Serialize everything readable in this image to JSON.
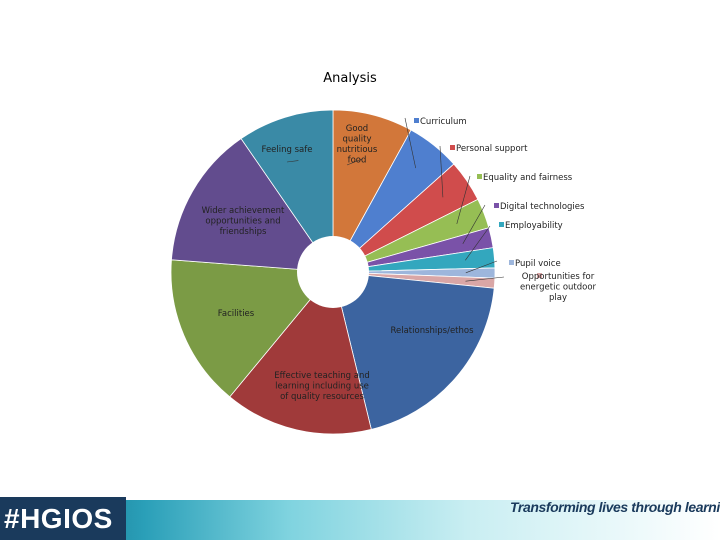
{
  "chart_data": {
    "type": "pie",
    "title": "Analysis",
    "donut": true,
    "grid": false,
    "slices": [
      {
        "label": "Good quality nutritious food",
        "value": 8.0,
        "color": "#d2773a",
        "label_style": "inside"
      },
      {
        "label": "Curriculum",
        "value": 5.4,
        "color": "#4f7fcf",
        "label_style": "legend"
      },
      {
        "label": "Personal support",
        "value": 4.2,
        "color": "#d04c4c",
        "label_style": "legend"
      },
      {
        "label": "Equality and fairness",
        "value": 3.0,
        "color": "#96be54",
        "label_style": "legend"
      },
      {
        "label": "Digital technologies",
        "value": 2.0,
        "color": "#7a52a8",
        "label_style": "legend"
      },
      {
        "label": "Employability",
        "value": 2.0,
        "color": "#33a7be",
        "label_style": "legend"
      },
      {
        "label": "Pupil voice",
        "value": 1.0,
        "color": "#9db6dc",
        "label_style": "legend"
      },
      {
        "label": "Opportunities for energetic outdoor play",
        "value": 1.0,
        "color": "#d9a6a6",
        "label_style": "legend"
      },
      {
        "label": "Relationships/ethos",
        "value": 19.6,
        "color": "#3c64a0",
        "label_style": "inside"
      },
      {
        "label": "Effective teaching and learning including use of quality resources",
        "value": 14.8,
        "color": "#a03a3a",
        "label_style": "inside"
      },
      {
        "label": "Facilities",
        "value": 15.2,
        "color": "#7b9b45",
        "label_style": "inside"
      },
      {
        "label": "Wider achievement opportunities and friendships",
        "value": 14.2,
        "color": "#624c8e",
        "label_style": "inside"
      },
      {
        "label": "Feeling safe",
        "value": 9.6,
        "color": "#3a8aa6",
        "label_style": "inside"
      }
    ]
  },
  "branding": {
    "hashtag": "#HGIOS",
    "tagline": "Transforming lives through learning"
  }
}
